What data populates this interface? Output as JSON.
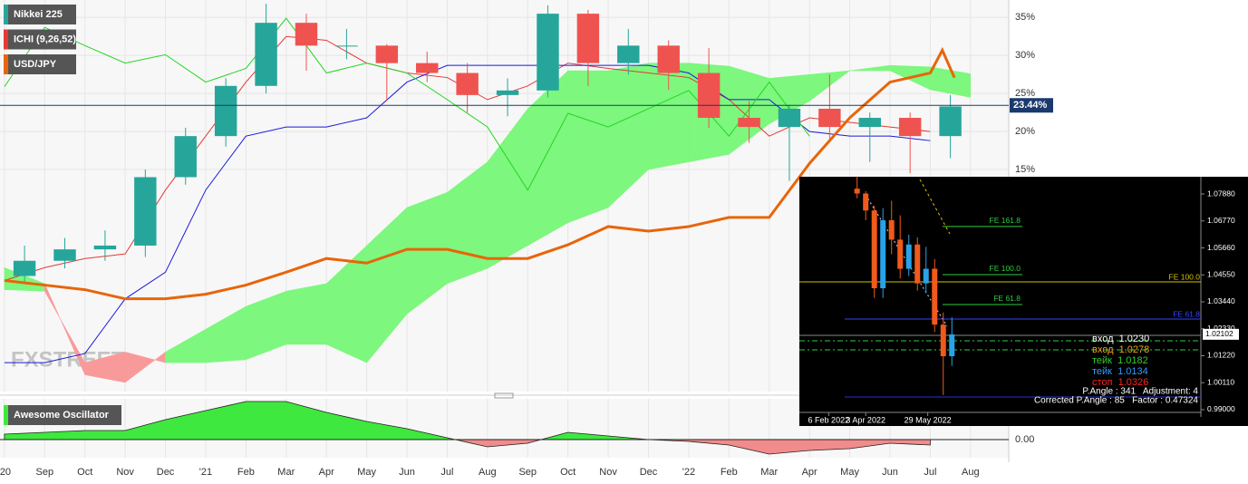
{
  "chart_data": [
    {
      "type": "candlestick",
      "xlim": [
        -0.11,
        24.95
      ],
      "ylim": [
        -14.2,
        37.3
      ],
      "xticks": [
        {
          "value": 0,
          "label": "'20"
        },
        {
          "value": 1,
          "label": "Sep"
        },
        {
          "value": 2,
          "label": "Oct"
        },
        {
          "value": 3,
          "label": "Nov"
        },
        {
          "value": 4,
          "label": "Dec"
        },
        {
          "value": 5,
          "label": "'21"
        },
        {
          "value": 6,
          "label": "Feb"
        },
        {
          "value": 7,
          "label": "Mar"
        },
        {
          "value": 8,
          "label": "Apr"
        },
        {
          "value": 9,
          "label": "May"
        },
        {
          "value": 10,
          "label": "Jun"
        },
        {
          "value": 11,
          "label": "Jul"
        },
        {
          "value": 12,
          "label": "Aug"
        },
        {
          "value": 13,
          "label": "Sep"
        },
        {
          "value": 14,
          "label": "Oct"
        },
        {
          "value": 15,
          "label": "Nov"
        },
        {
          "value": 16,
          "label": "Dec"
        },
        {
          "value": 17,
          "label": "'22"
        },
        {
          "value": 18,
          "label": "Feb"
        },
        {
          "value": 19,
          "label": "Mar"
        },
        {
          "value": 20,
          "label": "Apr"
        },
        {
          "value": 21,
          "label": "May"
        },
        {
          "value": 22,
          "label": "Jun"
        },
        {
          "value": 23,
          "label": "Jul"
        },
        {
          "value": 24,
          "label": "Aug"
        }
      ],
      "yticks": [
        {
          "value": 15,
          "label": "15%"
        },
        {
          "value": 20,
          "label": "20%"
        },
        {
          "value": 25,
          "label": "25%"
        },
        {
          "value": 30,
          "label": "30%"
        },
        {
          "value": 35,
          "label": "35%"
        }
      ],
      "grid": true,
      "last_value": {
        "value": 23.44,
        "label": "23.44%"
      },
      "watermark": "FXSTREET",
      "series": [
        {
          "name": "Nikkei 225",
          "color": "#26a69a",
          "down_color": "#ef5350",
          "x": [
            0.5,
            1.5,
            2.5,
            3.5,
            4.5,
            5.5,
            6.5,
            7.5,
            8.5,
            9.5,
            10.5,
            11.5,
            12.5,
            13.5,
            14.5,
            15.5,
            16.5,
            17.5,
            18.5,
            19.5,
            20.5,
            21.5,
            22.5,
            23.5
          ],
          "open": [
            1,
            3,
            4.5,
            5,
            14,
            19.4,
            26,
            34.3,
            31.3,
            31.3,
            29,
            27.7,
            24.8,
            25.4,
            35.5,
            29,
            31.3,
            27.7,
            21.8,
            20.6,
            23,
            20.6,
            21.8,
            19.4
          ],
          "high": [
            5,
            6,
            7,
            15,
            20.5,
            27,
            36.8,
            35.5,
            33.5,
            31.5,
            30.5,
            29,
            27,
            36.6,
            36,
            33.5,
            32,
            31,
            24,
            23.5,
            27.5,
            22.5,
            22.5,
            24.8
          ],
          "low": [
            0,
            2,
            3,
            3.5,
            13,
            18,
            25,
            28,
            29.5,
            24,
            26.5,
            22.5,
            22,
            24.5,
            26,
            27.5,
            25.5,
            20.5,
            18.5,
            13.5,
            19,
            16,
            14.5,
            16.5
          ],
          "close": [
            3,
            4.5,
            5,
            14,
            19.4,
            26,
            34.3,
            31.3,
            31.3,
            29,
            27.7,
            24.8,
            25.4,
            35.5,
            29,
            31.3,
            27.7,
            21.8,
            20.6,
            23,
            20.6,
            21.8,
            19.4,
            23.3
          ]
        },
        {
          "name": "ICHI (9,26,52)",
          "color": "#e53935",
          "cloud": {
            "color": "#7df77d",
            "down_color": "#f99a9a",
            "x": [
              0,
              1,
              2,
              3,
              4,
              5,
              6,
              7,
              8,
              9,
              10,
              11,
              12,
              13,
              14,
              15,
              16,
              17,
              18,
              19,
              20,
              21,
              22,
              23,
              24
            ],
            "span_a": [
              2.1,
              0,
              -12,
              -13,
              -9,
              -6,
              -3,
              -1,
              0,
              5,
              10,
              12,
              16,
              23,
              28,
              28,
              29,
              29,
              28.6,
              27,
              27.5,
              28,
              28.7,
              28.5,
              27.6
            ],
            "span_b": [
              -0.8,
              -1,
              -10.4,
              -9,
              -10.4,
              -10.4,
              -10,
              -8,
              -8,
              -10.4,
              -4,
              0,
              2,
              5,
              8,
              10,
              15,
              16,
              17,
              21,
              24,
              28,
              28,
              25.5,
              24.5
            ]
          },
          "lines": [
            {
              "color": "#e53935",
              "x": [
                0,
                1,
                2,
                3,
                4,
                5,
                6,
                7,
                8,
                9,
                10,
                11,
                12,
                13,
                14,
                15,
                16,
                17,
                18,
                19,
                20,
                21,
                22,
                23
              ],
              "values": [
                0.4,
                2.1,
                3.3,
                3.9,
                12.3,
                19.4,
                26.5,
                32.5,
                32,
                29,
                27.7,
                27.1,
                24.2,
                26,
                29,
                28.3,
                27.7,
                27.1,
                24.2,
                19.4,
                21.8,
                21.2,
                20.6,
                20
              ]
            },
            {
              "color": "#1a1adb",
              "x": [
                0,
                1,
                2,
                3,
                4,
                5,
                6,
                7,
                8,
                9,
                10,
                11,
                12,
                13,
                14,
                15,
                16,
                17,
                18,
                19,
                20,
                21,
                22,
                23
              ],
              "values": [
                -10.4,
                -10.4,
                -9.2,
                -2,
                1.5,
                12.3,
                19.4,
                20.6,
                20.6,
                21.8,
                26.5,
                28.7,
                28.7,
                28.7,
                28.7,
                28.7,
                28.7,
                27.7,
                24.2,
                24.2,
                20,
                19.4,
                19.4,
                18.8
              ]
            },
            {
              "color": "#22d622",
              "x": [
                0,
                1,
                2,
                3,
                4,
                5,
                6,
                7,
                8,
                9,
                10,
                11,
                12,
                13,
                14,
                15,
                16,
                17,
                18,
                19,
                20
              ],
              "values": [
                25.9,
                33.7,
                31.3,
                29,
                30.1,
                26.5,
                28.3,
                34.9,
                27.7,
                29,
                27.7,
                24.2,
                20.6,
                12.3,
                22.4,
                20.6,
                23,
                25.4,
                19.4,
                26.5,
                19.4
              ]
            }
          ]
        },
        {
          "name": "USD/JPY",
          "color": "#e8650a",
          "x": [
            0,
            1,
            2,
            3,
            4,
            5,
            6,
            7,
            8,
            9,
            10,
            11,
            12,
            13,
            14,
            15,
            16,
            17,
            18,
            19,
            20,
            21,
            22,
            23,
            23.3,
            23.6
          ],
          "values": [
            0.4,
            -0.2,
            -0.8,
            -2,
            -2,
            -1.4,
            -0.2,
            1.5,
            3.3,
            2.7,
            4.5,
            4.5,
            3.3,
            3.3,
            5.1,
            7.5,
            6.9,
            7.5,
            8.7,
            8.7,
            15.8,
            21.8,
            26.5,
            27.7,
            30.7,
            27.1
          ]
        }
      ]
    },
    {
      "type": "area",
      "name": "Awesome Oscillator",
      "color": "#3ee83e",
      "down_color": "#f28b8b",
      "x": [
        0,
        1,
        2,
        3,
        4,
        5,
        6,
        7,
        8,
        9,
        10,
        11,
        12,
        13,
        14,
        15,
        16,
        17,
        18,
        19,
        20,
        21,
        22,
        23
      ],
      "values": [
        0.3,
        0.4,
        0.5,
        0.5,
        1.1,
        1.6,
        2.1,
        2.1,
        1.5,
        1.0,
        0.6,
        0.1,
        -0.4,
        -0.2,
        0.4,
        0.2,
        0,
        -0.1,
        -0.3,
        -0.8,
        -0.6,
        -0.5,
        -0.2,
        -0.3
      ],
      "xlim": [
        -0.11,
        24.95
      ],
      "ylim": [
        -1,
        2.25
      ],
      "yticks": [
        {
          "value": 0,
          "label": "0.00"
        }
      ]
    },
    {
      "type": "candlestick",
      "color": "#29a3e8",
      "down_color": "#f05a1a",
      "xlim": [
        -6.7,
        39.9
      ],
      "ylim": [
        0.987,
        1.0859
      ],
      "xticks": [
        {
          "value": -3.3,
          "label": "6 Feb 2022"
        },
        {
          "value": 1,
          "label": "3 Apr 2022"
        },
        {
          "value": 8.2,
          "label": "29 May 2022"
        }
      ],
      "yticks": [
        {
          "value": 1.0788,
          "label": "1.07880"
        },
        {
          "value": 1.0677,
          "label": "1.06770"
        },
        {
          "value": 1.0566,
          "label": "1.05660"
        },
        {
          "value": 1.0455,
          "label": "1.04550"
        },
        {
          "value": 1.0344,
          "label": "1.03440"
        },
        {
          "value": 1.0233,
          "label": "1.02330"
        },
        {
          "value": 1.0122,
          "label": "1.01220"
        },
        {
          "value": 1.0011,
          "label": "1.00110"
        },
        {
          "value": 0.99,
          "label": "0.99000"
        }
      ],
      "current_value": {
        "value": 1.02102,
        "label": "1.02102"
      },
      "x": [
        0,
        1,
        2,
        3,
        4,
        5,
        6,
        7,
        8,
        9,
        10,
        11
      ],
      "open": [
        1.081,
        1.079,
        1.072,
        1.04,
        1.068,
        1.06,
        1.048,
        1.058,
        1.042,
        1.048,
        1.025,
        1.012
      ],
      "high": [
        1.086,
        1.08,
        1.074,
        1.073,
        1.076,
        1.07,
        1.062,
        1.061,
        1.057,
        1.052,
        1.03,
        1.028
      ],
      "low": [
        1.077,
        1.068,
        1.036,
        1.036,
        1.054,
        1.044,
        1.045,
        1.039,
        1.038,
        1.022,
        0.996,
        1.008
      ],
      "close": [
        1.079,
        1.072,
        1.04,
        1.068,
        1.06,
        1.048,
        1.058,
        1.042,
        1.048,
        1.025,
        1.012,
        1.021
      ],
      "levels": [
        {
          "label": "FE 161.8",
          "value": 1.0654,
          "color": "#2ecc40"
        },
        {
          "label": "FE 100.0",
          "value": 1.0456,
          "color": "#2ecc40"
        },
        {
          "label": "FE 61.8",
          "value": 1.0333,
          "color": "#2ecc40"
        },
        {
          "label": "FE 100.0",
          "value": 1.0426,
          "color": "#d4c100"
        },
        {
          "label": "FE 61.8",
          "value": 1.0273,
          "color": "#3344ff"
        }
      ],
      "orders": [
        {
          "label": "вход  1.0230",
          "color": "#ffffff"
        },
        {
          "label": "вход  1.0278",
          "color": "#f0a020"
        },
        {
          "label": "тейк  1.0182",
          "color": "#33cc33"
        },
        {
          "label": "тейк  1.0134",
          "color": "#3399ff"
        },
        {
          "label": "стоп  1.0326",
          "color": "#ff2222"
        }
      ],
      "footer": [
        "P.Angle : 341   Adjustment: 4",
        "Corrected P.Angle : 85   Factor : 0.47324"
      ]
    }
  ]
}
